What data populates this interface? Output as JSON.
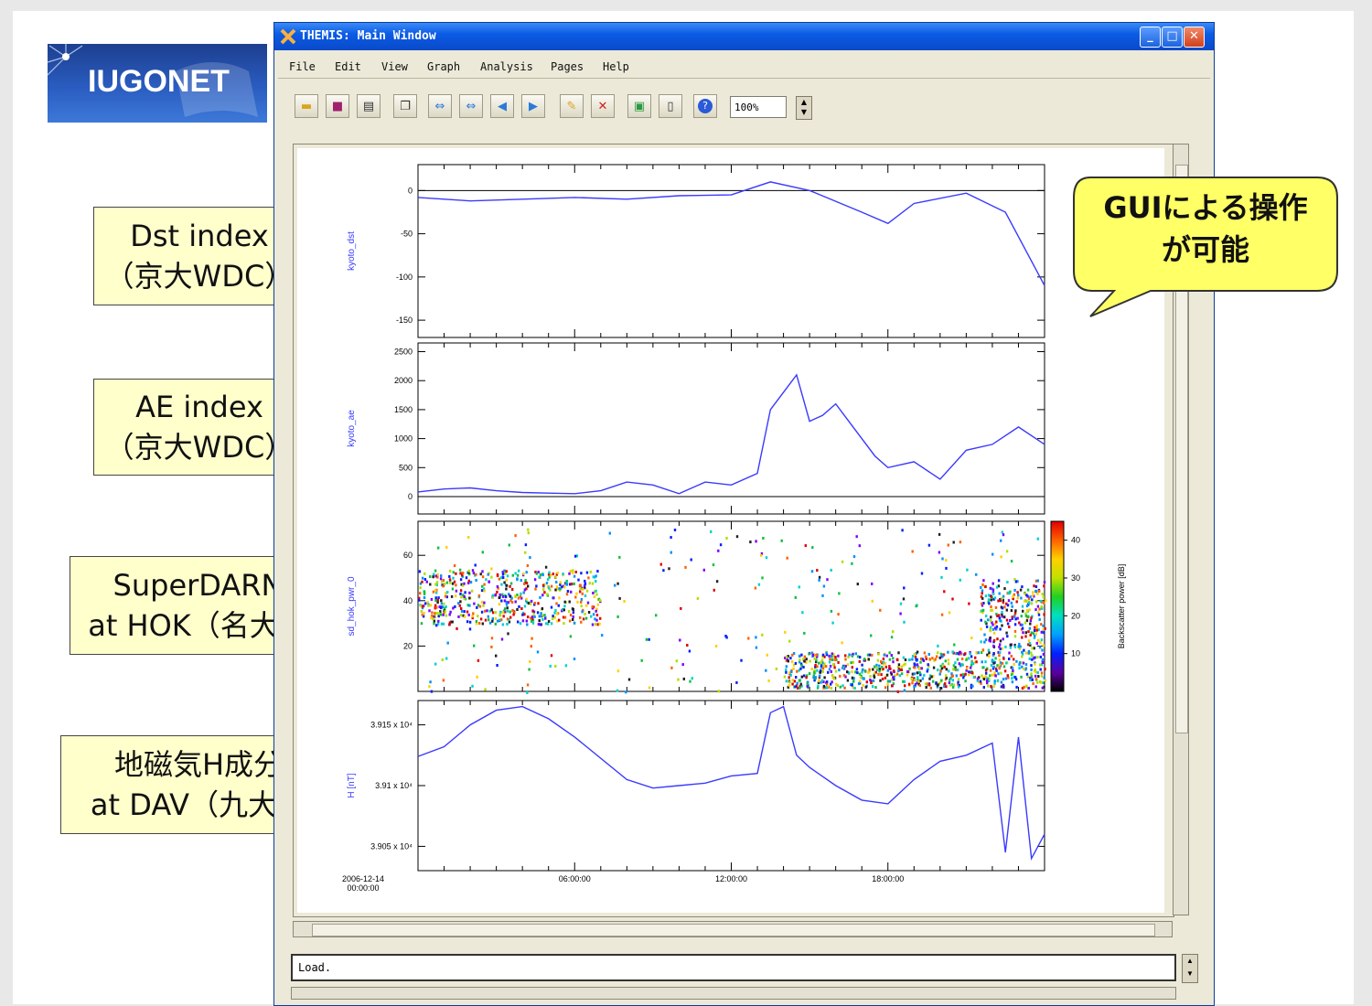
{
  "logo": {
    "text": "IUGONET"
  },
  "labels": [
    {
      "line1": "Dst index",
      "line2": "（京大WDC）"
    },
    {
      "line1": "AE index",
      "line2": "（京大WDC）"
    },
    {
      "line1": "SuperDARN",
      "line2": "at HOK（名大）"
    },
    {
      "line1": "地磁気H成分",
      "line2": "at DAV（九大）"
    }
  ],
  "callout": {
    "line1": "GUIによる操作",
    "line2": "が可能"
  },
  "window": {
    "title": "THEMIS: Main Window",
    "menu": [
      "File",
      "Edit",
      "View",
      "Graph",
      "Analysis",
      "Pages",
      "Help"
    ],
    "toolbar_icons": [
      "open-folder-icon",
      "save-icon",
      "print-icon",
      "copy-icon",
      "expand-icon",
      "shrink-icon",
      "back-arrow-icon",
      "forward-arrow-icon",
      "notes-icon",
      "delete-icon",
      "layout-icon",
      "blank-page-icon",
      "help-icon"
    ],
    "zoom": "100%",
    "status": "Load."
  },
  "chart_data": [
    {
      "type": "line",
      "ylabel": "kyoto_dst",
      "ylim": [
        -170,
        30
      ],
      "yticks": [
        0,
        -50,
        -100,
        -150
      ],
      "x": [
        "00:00",
        "02:00",
        "04:00",
        "06:00",
        "08:00",
        "10:00",
        "12:00",
        "13:30",
        "15:00",
        "17:00",
        "18:00",
        "19:00",
        "21:00",
        "22:30",
        "24:00"
      ],
      "values": [
        -8,
        -12,
        -10,
        -8,
        -10,
        -6,
        -5,
        10,
        0,
        -25,
        -38,
        -15,
        -3,
        -25,
        -110
      ],
      "color": "#3a3aff"
    },
    {
      "type": "line",
      "ylabel": "kyoto_ae",
      "ylim": [
        -300,
        2650
      ],
      "yticks": [
        2500,
        2000,
        1500,
        1000,
        500,
        0
      ],
      "x": [
        "00:00",
        "01:00",
        "02:00",
        "03:00",
        "04:00",
        "05:00",
        "06:00",
        "07:00",
        "08:00",
        "09:00",
        "10:00",
        "11:00",
        "12:00",
        "13:00",
        "13:30",
        "14:00",
        "14:30",
        "15:00",
        "15:30",
        "16:00",
        "16:30",
        "17:00",
        "17:30",
        "18:00",
        "19:00",
        "20:00",
        "21:00",
        "22:00",
        "23:00",
        "24:00"
      ],
      "values": [
        80,
        130,
        150,
        100,
        70,
        60,
        50,
        100,
        250,
        200,
        50,
        250,
        200,
        400,
        1500,
        1800,
        2100,
        1300,
        1400,
        1600,
        1300,
        1000,
        700,
        500,
        600,
        300,
        800,
        900,
        1200,
        900
      ],
      "color": "#3a3aff"
    },
    {
      "type": "heatmap",
      "ylabel": "sd_hok_pwr_0",
      "ylim": [
        0,
        75
      ],
      "yticks": [
        60,
        40,
        20
      ],
      "colorbar": {
        "label": "Backscatter power [dB]",
        "ticks": [
          40,
          30,
          20,
          10
        ]
      }
    },
    {
      "type": "line",
      "ylabel": "H [nT]",
      "ylim": [
        39030,
        39170
      ],
      "yticks": [
        39150,
        39100,
        39050
      ],
      "ytick_labels": [
        "3.915 x 10⁴",
        "3.91 x 10⁴",
        "3.905 x 10⁴"
      ],
      "x": [
        "00:00",
        "01:00",
        "02:00",
        "03:00",
        "04:00",
        "05:00",
        "06:00",
        "08:00",
        "09:00",
        "10:00",
        "11:00",
        "12:00",
        "13:00",
        "13:30",
        "14:00",
        "14:30",
        "15:00",
        "16:00",
        "17:00",
        "18:00",
        "19:00",
        "20:00",
        "21:00",
        "22:00",
        "22:30",
        "23:00",
        "23:30",
        "24:00"
      ],
      "values": [
        39124,
        39132,
        39150,
        39162,
        39165,
        39155,
        39140,
        39105,
        39098,
        39100,
        39102,
        39108,
        39110,
        39160,
        39165,
        39125,
        39115,
        39100,
        39088,
        39085,
        39105,
        39120,
        39125,
        39135,
        39045,
        39140,
        39040,
        39060
      ],
      "color": "#3a3aff"
    }
  ],
  "xaxis": {
    "ticks": [
      "2006-12-14\n00:00:00",
      "06:00:00",
      "12:00:00",
      "18:00:00"
    ]
  }
}
